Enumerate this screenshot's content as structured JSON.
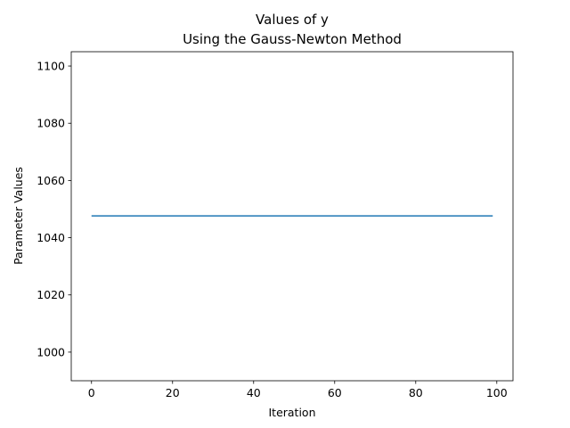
{
  "chart_data": {
    "type": "line",
    "title": "Values of y",
    "subtitle": "Using the Gauss-Newton Method",
    "xlabel": "Iteration",
    "ylabel": "Parameter Values",
    "xlim": [
      -5,
      104
    ],
    "ylim": [
      990,
      1105
    ],
    "xticks": [
      0,
      20,
      40,
      60,
      80,
      100
    ],
    "yticks": [
      1000,
      1020,
      1040,
      1060,
      1080,
      1100
    ],
    "grid": false,
    "series": [
      {
        "color": "#1f77b4",
        "x": [
          0,
          99
        ],
        "y": [
          1047.6,
          1047.6
        ]
      }
    ]
  }
}
